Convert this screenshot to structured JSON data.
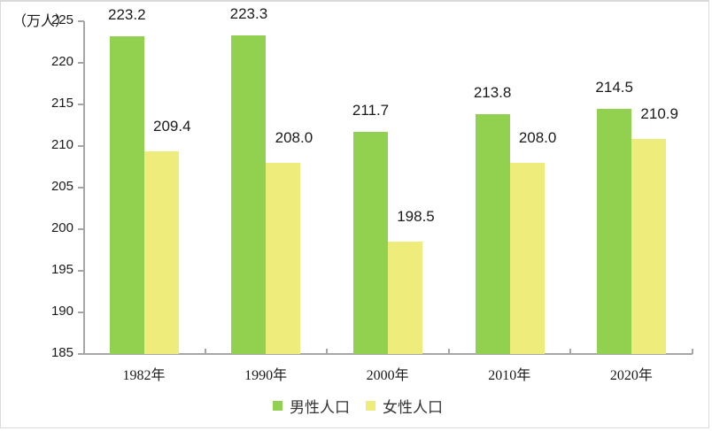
{
  "chart_data": {
    "type": "bar",
    "title": "",
    "unit_label": "（万人）",
    "xlabel": "",
    "ylabel": "万人",
    "ylim": [
      185,
      225
    ],
    "yticks": [
      185,
      190,
      195,
      200,
      205,
      210,
      215,
      220,
      225
    ],
    "grid": false,
    "legend_position": "bottom",
    "categories": [
      "1982年",
      "1990年",
      "2000年",
      "2010年",
      "2020年"
    ],
    "series": [
      {
        "name": "男性人口",
        "color": "#92d050",
        "values": [
          223.2,
          223.3,
          211.7,
          213.8,
          214.5
        ],
        "labels": [
          "223.2",
          "223.3",
          "211.7",
          "213.8",
          "214.5"
        ]
      },
      {
        "name": "女性人口",
        "color": "#eeec7b",
        "values": [
          209.4,
          208.0,
          198.5,
          208.0,
          210.9
        ],
        "labels": [
          "209.4",
          "208.0",
          "198.5",
          "208.0",
          "210.9"
        ]
      }
    ]
  }
}
